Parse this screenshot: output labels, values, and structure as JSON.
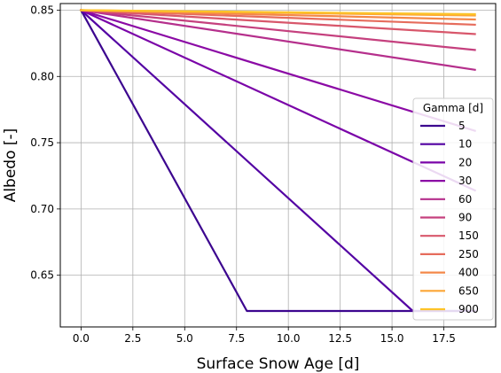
{
  "chart_data": {
    "type": "line",
    "title": "",
    "xlabel": "Surface Snow Age [d]",
    "ylabel": "Albedo [-]",
    "xlim": [
      -1,
      20
    ],
    "ylim": [
      0.611,
      0.855
    ],
    "xticks": [
      0.0,
      2.5,
      5.0,
      7.5,
      10.0,
      12.5,
      15.0,
      17.5
    ],
    "xtick_labels": [
      "0.0",
      "2.5",
      "5.0",
      "7.5",
      "10.0",
      "12.5",
      "15.0",
      "17.5"
    ],
    "yticks": [
      0.65,
      0.7,
      0.75,
      0.8,
      0.85
    ],
    "ytick_labels": [
      "0.65",
      "0.70",
      "0.75",
      "0.80",
      "0.85"
    ],
    "grid": true,
    "legend": {
      "title": "Gamma [d]",
      "placement": "right"
    },
    "series": [
      {
        "name": "5",
        "color": "#3c068f",
        "x": [
          0,
          8,
          19
        ],
        "y": [
          0.85,
          0.623,
          0.623
        ]
      },
      {
        "name": "10",
        "color": "#5302a3",
        "x": [
          0,
          16,
          19
        ],
        "y": [
          0.85,
          0.623,
          0.623
        ]
      },
      {
        "name": "20",
        "color": "#7a04a8",
        "x": [
          0,
          19
        ],
        "y": [
          0.85,
          0.714
        ]
      },
      {
        "name": "30",
        "color": "#8b0aa5",
        "x": [
          0,
          19
        ],
        "y": [
          0.85,
          0.759
        ]
      },
      {
        "name": "60",
        "color": "#b52f8c",
        "x": [
          0,
          19
        ],
        "y": [
          0.85,
          0.805
        ]
      },
      {
        "name": "90",
        "color": "#c5407e",
        "x": [
          0,
          19
        ],
        "y": [
          0.85,
          0.82
        ]
      },
      {
        "name": "150",
        "color": "#d8576b",
        "x": [
          0,
          19
        ],
        "y": [
          0.85,
          0.832
        ]
      },
      {
        "name": "250",
        "color": "#e66c5c",
        "x": [
          0,
          19
        ],
        "y": [
          0.85,
          0.839
        ]
      },
      {
        "name": "400",
        "color": "#f48849",
        "x": [
          0,
          19
        ],
        "y": [
          0.85,
          0.843
        ]
      },
      {
        "name": "650",
        "color": "#fca636",
        "x": [
          0,
          19
        ],
        "y": [
          0.85,
          0.846
        ]
      },
      {
        "name": "900",
        "color": "#fdc328",
        "x": [
          0,
          19
        ],
        "y": [
          0.85,
          0.847
        ]
      }
    ]
  }
}
